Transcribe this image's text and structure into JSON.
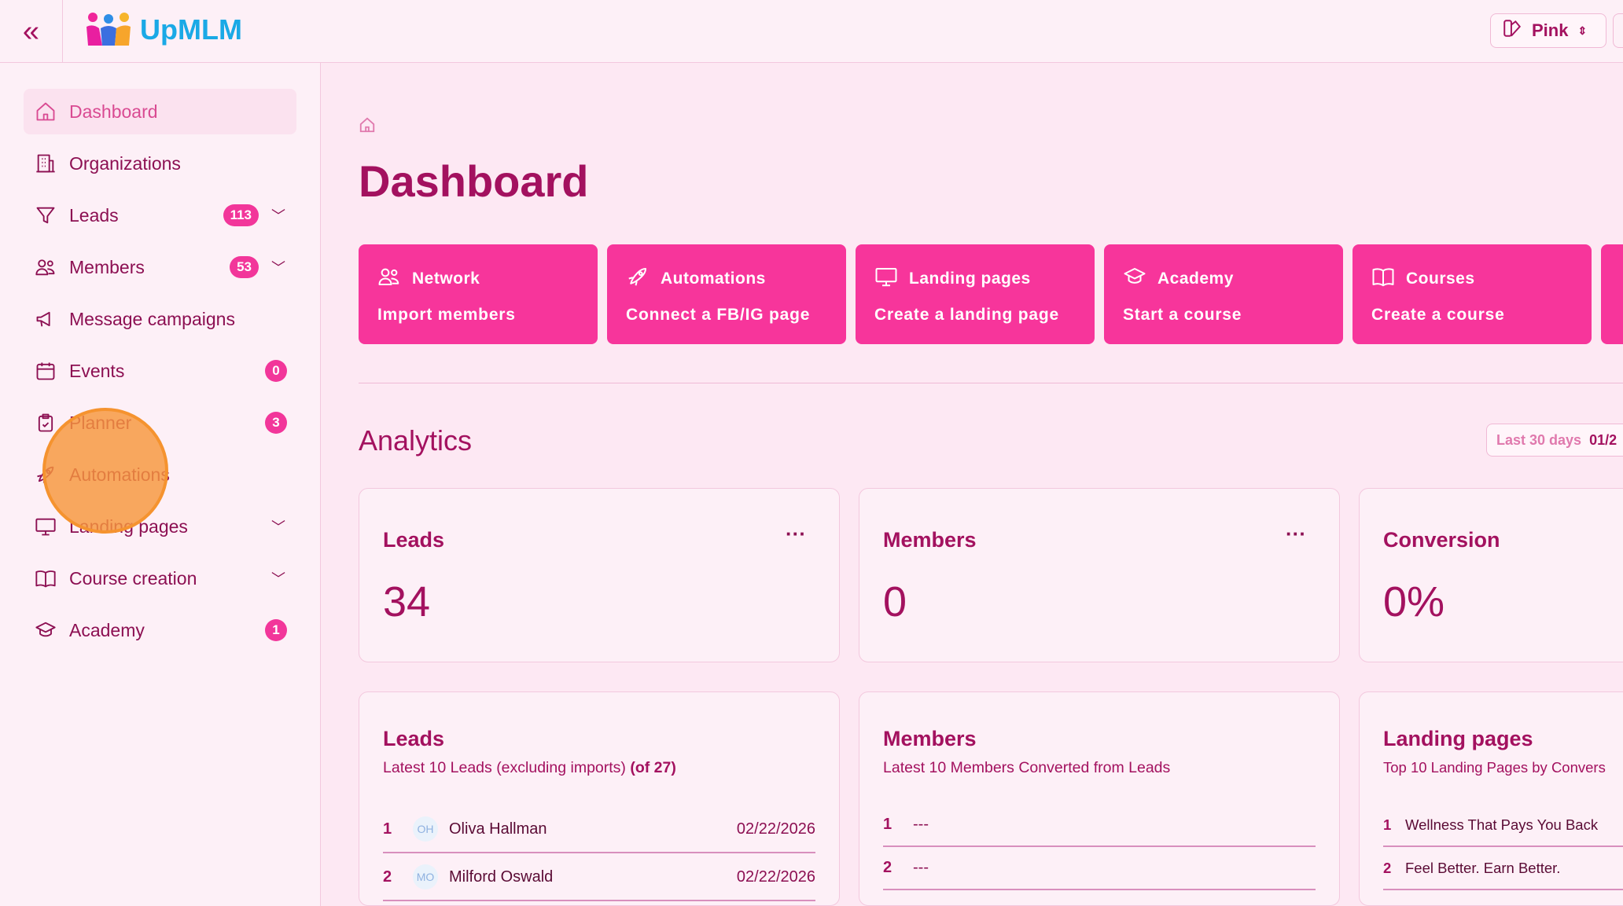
{
  "header": {
    "brand": "UpMLM",
    "theme_label": "Pink"
  },
  "sidebar": {
    "items": [
      {
        "label": "Dashboard",
        "icon": "home-icon",
        "active": true
      },
      {
        "label": "Organizations",
        "icon": "building-icon"
      },
      {
        "label": "Leads",
        "icon": "funnel-icon",
        "badge": "113",
        "expandable": true
      },
      {
        "label": "Members",
        "icon": "users-icon",
        "badge": "53",
        "expandable": true
      },
      {
        "label": "Message campaigns",
        "icon": "megaphone-icon"
      },
      {
        "label": "Events",
        "icon": "calendar-icon",
        "badge": "0"
      },
      {
        "label": "Planner",
        "icon": "clipboard-icon",
        "badge": "3"
      },
      {
        "label": "Automations",
        "icon": "rocket-icon"
      },
      {
        "label": "Landing pages",
        "icon": "monitor-icon",
        "expandable": true
      },
      {
        "label": "Course creation",
        "icon": "book-icon",
        "expandable": true
      },
      {
        "label": "Academy",
        "icon": "graduation-cap-icon",
        "badge": "1"
      }
    ]
  },
  "main": {
    "title": "Dashboard",
    "actions": [
      {
        "title": "Network",
        "subtitle": "Import members",
        "icon": "users-icon"
      },
      {
        "title": "Automations",
        "subtitle": "Connect a FB/IG page",
        "icon": "rocket-icon"
      },
      {
        "title": "Landing pages",
        "subtitle": "Create a landing page",
        "icon": "monitor-icon"
      },
      {
        "title": "Academy",
        "subtitle": "Start a course",
        "icon": "graduation-cap-icon"
      },
      {
        "title": "Courses",
        "subtitle": "Create a course",
        "icon": "book-icon"
      }
    ],
    "analytics_title": "Analytics",
    "range": {
      "label": "Last 30 days",
      "value": "01/2"
    },
    "stats": [
      {
        "title": "Leads",
        "value": "34",
        "menu": "···"
      },
      {
        "title": "Members",
        "value": "0",
        "menu": "···"
      },
      {
        "title": "Conversion",
        "value": "0%"
      }
    ],
    "lists": [
      {
        "title": "Leads",
        "subtitle": "Latest 10 Leads (excluding imports)",
        "subtitle_bold": "(of 27)",
        "rows": [
          {
            "index": "1",
            "initials": "OH",
            "name": "Oliva Hallman",
            "date": "02/22/2026"
          },
          {
            "index": "2",
            "initials": "MO",
            "name": "Milford Oswald",
            "date": "02/22/2026"
          }
        ]
      },
      {
        "title": "Members",
        "subtitle": "Latest 10 Members Converted from Leads",
        "rows": [
          {
            "index": "1",
            "name": "---"
          },
          {
            "index": "2",
            "name": "---"
          }
        ]
      },
      {
        "title": "Landing pages",
        "subtitle": "Top 10 Landing Pages by Convers",
        "rows": [
          {
            "index": "1",
            "name": "Wellness That Pays You Back"
          },
          {
            "index": "2",
            "name": "Feel Better. Earn Better."
          }
        ]
      }
    ]
  },
  "colors": {
    "accent": "#f7359b",
    "text": "#a3115f",
    "background": "#fde8f3"
  }
}
